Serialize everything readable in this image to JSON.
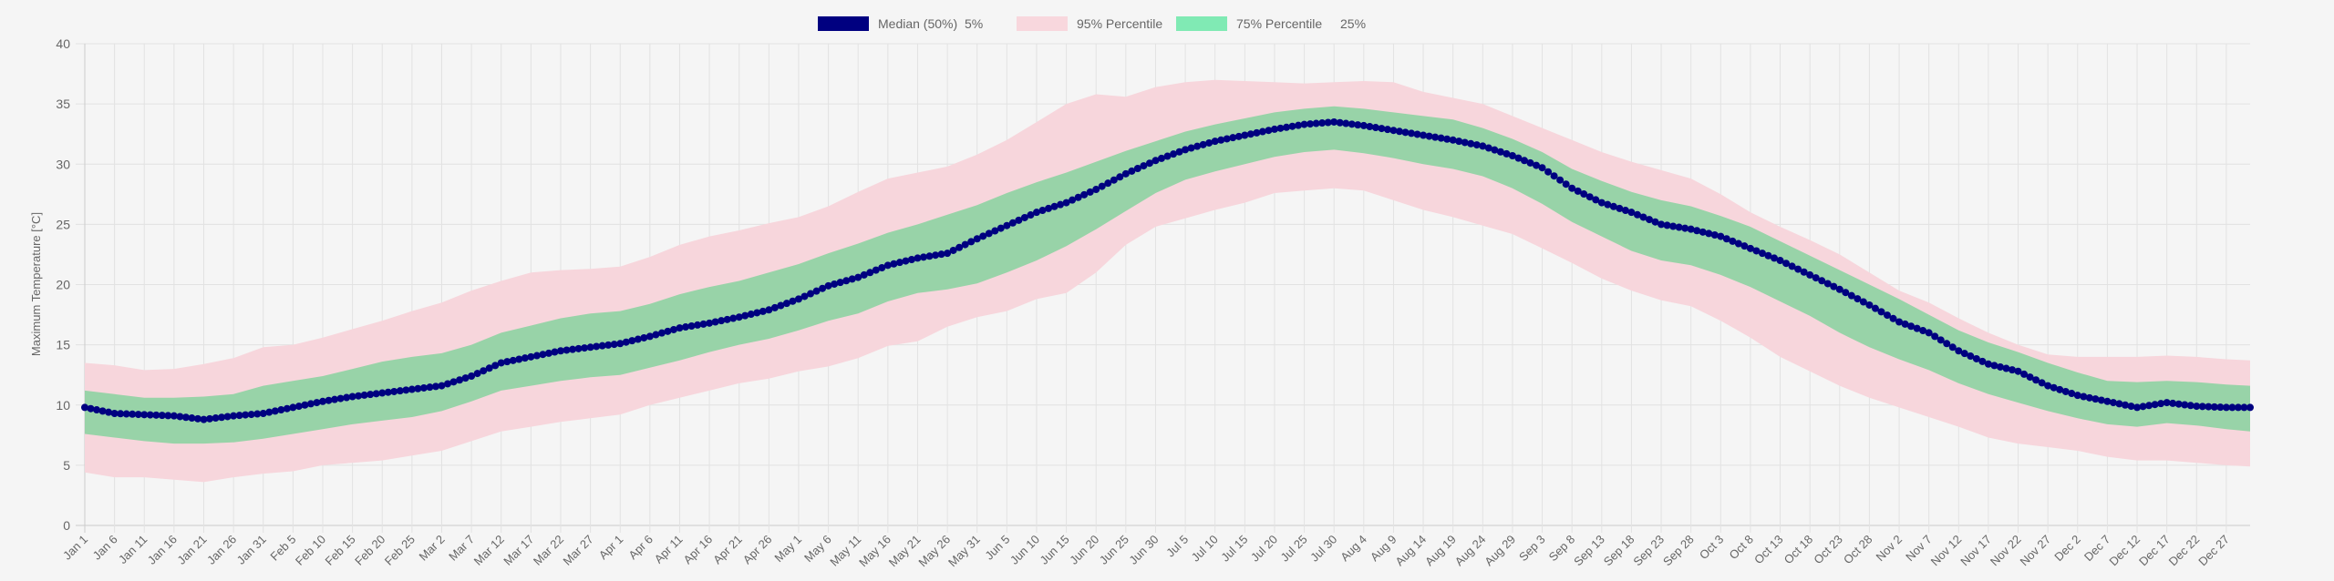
{
  "chart_data": {
    "type": "area",
    "title": "",
    "xlabel": "",
    "ylabel": "Maximum Temperature [°C]",
    "ylim": [
      0,
      40
    ],
    "yticks": [
      0,
      5,
      10,
      15,
      20,
      25,
      30,
      35,
      40
    ],
    "grid": true,
    "legend_position": "top",
    "colors": {
      "median": "#000080",
      "p95_band": "#f8d7dd",
      "p75_band": "#80eab4",
      "band_outer": "#f7d6dc",
      "band_inner": "#98d3a8"
    },
    "legend": [
      {
        "label": "Median (50%)",
        "color": "#000080"
      },
      {
        "label": "5%",
        "color": "transparent"
      },
      {
        "label": "95% Percentile",
        "color": "#f8d7dd"
      },
      {
        "label": "75% Percentile",
        "color": "#80eab4"
      },
      {
        "label": "25%",
        "color": "transparent"
      }
    ],
    "x_tick_labels": [
      "Jan 1",
      "Jan 6",
      "Jan 11",
      "Jan 16",
      "Jan 21",
      "Jan 26",
      "Jan 31",
      "Feb 5",
      "Feb 10",
      "Feb 15",
      "Feb 20",
      "Feb 25",
      "Mar 2",
      "Mar 7",
      "Mar 12",
      "Mar 17",
      "Mar 22",
      "Mar 27",
      "Apr 1",
      "Apr 6",
      "Apr 11",
      "Apr 16",
      "Apr 21",
      "Apr 26",
      "May 1",
      "May 6",
      "May 11",
      "May 16",
      "May 21",
      "May 26",
      "May 31",
      "Jun 5",
      "Jun 10",
      "Jun 15",
      "Jun 20",
      "Jun 25",
      "Jun 30",
      "Jul 5",
      "Jul 10",
      "Jul 15",
      "Jul 20",
      "Jul 25",
      "Jul 30",
      "Aug 4",
      "Aug 9",
      "Aug 14",
      "Aug 19",
      "Aug 24",
      "Aug 29",
      "Sep 3",
      "Sep 8",
      "Sep 13",
      "Sep 18",
      "Sep 23",
      "Sep 28",
      "Oct 3",
      "Oct 8",
      "Oct 13",
      "Oct 18",
      "Oct 23",
      "Oct 28",
      "Nov 2",
      "Nov 7",
      "Nov 12",
      "Nov 17",
      "Nov 22",
      "Nov 27",
      "Dec 2",
      "Dec 7",
      "Dec 12",
      "Dec 17",
      "Dec 22",
      "Dec 27"
    ],
    "x": [
      "Jan 1",
      "Jan 6",
      "Jan 11",
      "Jan 16",
      "Jan 21",
      "Jan 26",
      "Jan 31",
      "Feb 5",
      "Feb 10",
      "Feb 15",
      "Feb 20",
      "Feb 25",
      "Mar 2",
      "Mar 7",
      "Mar 12",
      "Mar 17",
      "Mar 22",
      "Mar 27",
      "Apr 1",
      "Apr 6",
      "Apr 11",
      "Apr 16",
      "Apr 21",
      "Apr 26",
      "May 1",
      "May 6",
      "May 11",
      "May 16",
      "May 21",
      "May 26",
      "May 31",
      "Jun 5",
      "Jun 10",
      "Jun 15",
      "Jun 20",
      "Jun 25",
      "Jun 30",
      "Jul 5",
      "Jul 10",
      "Jul 15",
      "Jul 20",
      "Jul 25",
      "Jul 30",
      "Aug 4",
      "Aug 9",
      "Aug 14",
      "Aug 19",
      "Aug 24",
      "Aug 29",
      "Sep 3",
      "Sep 8",
      "Sep 13",
      "Sep 18",
      "Sep 23",
      "Sep 28",
      "Oct 3",
      "Oct 8",
      "Oct 13",
      "Oct 18",
      "Oct 23",
      "Oct 28",
      "Nov 2",
      "Nov 7",
      "Nov 12",
      "Nov 17",
      "Nov 22",
      "Nov 27",
      "Dec 2",
      "Dec 7",
      "Dec 12",
      "Dec 17",
      "Dec 22",
      "Dec 27",
      "Dec 31"
    ],
    "series": [
      {
        "name": "Median (50%)",
        "values": [
          9.8,
          9.3,
          9.2,
          9.1,
          8.8,
          9.1,
          9.3,
          9.8,
          10.3,
          10.7,
          11.0,
          11.3,
          11.6,
          12.4,
          13.5,
          14.0,
          14.5,
          14.8,
          15.1,
          15.7,
          16.4,
          16.8,
          17.3,
          17.9,
          18.8,
          19.9,
          20.6,
          21.6,
          22.2,
          22.6,
          23.8,
          24.9,
          26.0,
          26.8,
          27.9,
          29.2,
          30.3,
          31.2,
          31.9,
          32.4,
          32.9,
          33.3,
          33.5,
          33.2,
          32.8,
          32.4,
          32.0,
          31.5,
          30.7,
          29.7,
          28.0,
          26.8,
          26.0,
          25.0,
          24.6,
          24.0,
          23.0,
          22.0,
          20.8,
          19.6,
          18.3,
          16.9,
          16.0,
          14.5,
          13.4,
          12.8,
          11.6,
          10.8,
          10.3,
          9.8,
          10.2,
          9.9,
          9.8,
          9.8
        ]
      },
      {
        "name": "5%",
        "values": [
          4.4,
          4.0,
          4.0,
          3.8,
          3.6,
          4.0,
          4.3,
          4.5,
          5.0,
          5.2,
          5.4,
          5.8,
          6.2,
          7.0,
          7.8,
          8.2,
          8.6,
          8.9,
          9.2,
          10.0,
          10.6,
          11.2,
          11.8,
          12.2,
          12.8,
          13.2,
          13.9,
          14.9,
          15.3,
          16.5,
          17.3,
          17.8,
          18.8,
          19.3,
          21.0,
          23.3,
          24.8,
          25.5,
          26.2,
          26.8,
          27.6,
          27.8,
          28.0,
          27.8,
          27.0,
          26.2,
          25.6,
          24.9,
          24.2,
          23.0,
          21.8,
          20.5,
          19.5,
          18.7,
          18.2,
          17.0,
          15.6,
          14.0,
          12.8,
          11.6,
          10.6,
          9.8,
          9.0,
          8.2,
          7.3,
          6.8,
          6.5,
          6.2,
          5.7,
          5.4,
          5.4,
          5.2,
          5.0,
          4.9
        ]
      },
      {
        "name": "95% Percentile",
        "values": [
          13.5,
          13.3,
          12.9,
          13.0,
          13.4,
          13.9,
          14.8,
          15.0,
          15.6,
          16.3,
          17.0,
          17.8,
          18.5,
          19.5,
          20.3,
          21.0,
          21.2,
          21.3,
          21.5,
          22.3,
          23.3,
          24.0,
          24.5,
          25.1,
          25.6,
          26.5,
          27.7,
          28.8,
          29.3,
          29.8,
          30.8,
          32.0,
          33.5,
          35.0,
          35.8,
          35.6,
          36.4,
          36.8,
          37.0,
          36.9,
          36.8,
          36.7,
          36.8,
          36.9,
          36.8,
          36.0,
          35.5,
          35.0,
          34.0,
          33.0,
          32.0,
          31.0,
          30.2,
          29.5,
          28.8,
          27.5,
          26.0,
          24.8,
          23.7,
          22.5,
          21.0,
          19.5,
          18.5,
          17.2,
          16.0,
          15.0,
          14.2,
          14.0,
          14.0,
          14.0,
          14.1,
          14.0,
          13.8,
          13.7
        ]
      },
      {
        "name": "75% Percentile",
        "values": [
          11.2,
          10.9,
          10.6,
          10.6,
          10.7,
          10.9,
          11.6,
          12.0,
          12.4,
          13.0,
          13.6,
          14.0,
          14.3,
          15.0,
          16.0,
          16.6,
          17.2,
          17.6,
          17.8,
          18.4,
          19.2,
          19.8,
          20.3,
          21.0,
          21.7,
          22.6,
          23.4,
          24.3,
          25.0,
          25.8,
          26.6,
          27.6,
          28.5,
          29.3,
          30.2,
          31.1,
          31.9,
          32.7,
          33.3,
          33.8,
          34.3,
          34.6,
          34.8,
          34.6,
          34.3,
          34.0,
          33.7,
          33.0,
          32.1,
          31.0,
          29.6,
          28.6,
          27.7,
          27.0,
          26.5,
          25.7,
          24.8,
          23.6,
          22.4,
          21.2,
          20.0,
          18.8,
          17.5,
          16.2,
          15.2,
          14.4,
          13.5,
          12.7,
          12.0,
          11.9,
          12.0,
          11.9,
          11.7,
          11.6
        ]
      },
      {
        "name": "25%",
        "values": [
          7.6,
          7.3,
          7.0,
          6.8,
          6.8,
          6.9,
          7.2,
          7.6,
          8.0,
          8.4,
          8.7,
          9.0,
          9.5,
          10.3,
          11.2,
          11.6,
          12.0,
          12.3,
          12.5,
          13.1,
          13.7,
          14.4,
          15.0,
          15.5,
          16.2,
          17.0,
          17.6,
          18.6,
          19.3,
          19.6,
          20.1,
          21.0,
          22.0,
          23.2,
          24.6,
          26.1,
          27.6,
          28.7,
          29.4,
          30.0,
          30.6,
          31.0,
          31.2,
          30.9,
          30.5,
          30.0,
          29.6,
          29.0,
          28.0,
          26.7,
          25.2,
          24.0,
          22.8,
          22.0,
          21.6,
          20.8,
          19.8,
          18.6,
          17.4,
          16.0,
          14.8,
          13.8,
          12.9,
          11.8,
          10.9,
          10.2,
          9.5,
          8.9,
          8.4,
          8.2,
          8.5,
          8.3,
          8.0,
          7.8
        ]
      }
    ]
  }
}
